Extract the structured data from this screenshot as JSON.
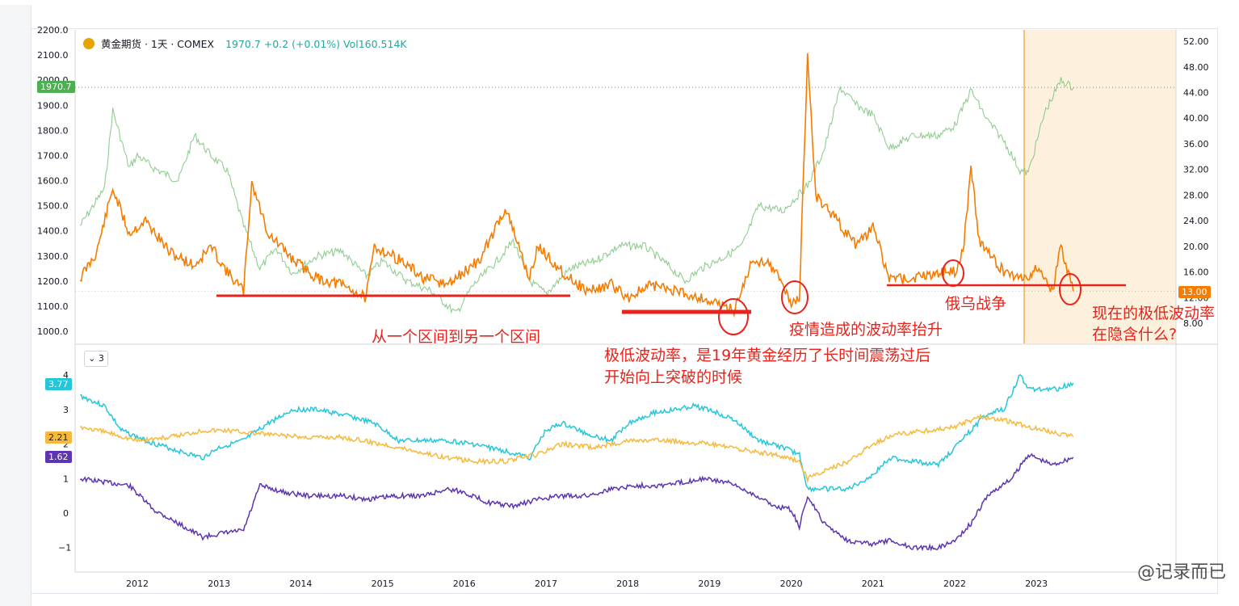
{
  "legend": {
    "symbol": "黄金期货 · 1天 · COMEX",
    "values": "1970.7  +0.2 (+0.01%)  Vol160.514K"
  },
  "badges": {
    "price": "1970.7",
    "vol": "13.00",
    "teal": "3.77",
    "yellow": "2.21",
    "purple": "1.62",
    "pane_btn": "⌄ 3"
  },
  "annotations": {
    "range": "从一个区间到另一个区间",
    "lowvol_line1": "极低波动率，是19年黄金经历了长时间震荡过后",
    "lowvol_line2": "开始向上突破的时候",
    "covid": "疫情造成的波动率抬升",
    "war": "俄乌战争",
    "now_line1": "现在的极低波动率",
    "now_line2": "在隐含什么?"
  },
  "watermark": "@记录而已",
  "colors": {
    "gold_price": "#7ec47e",
    "volatility": "#f57c00",
    "teal": "#26c6da",
    "yellow": "#f6b93b",
    "purple": "#5e35b1",
    "annotation": "#e8231b",
    "highlight": "#fdf0dc"
  },
  "chart_data": [
    {
      "type": "line",
      "title": "黄金期货 · 1天 · COMEX",
      "x_ticks": [
        "2012",
        "2013",
        "2014",
        "2015",
        "2016",
        "2017",
        "2018",
        "2019",
        "2020",
        "2021",
        "2022",
        "2023"
      ],
      "left_axis_ticks": [
        "1000.0",
        "1100.0",
        "1200.0",
        "1300.0",
        "1400.0",
        "1500.0",
        "1600.0",
        "1700.0",
        "1800.0",
        "1900.0",
        "2000.0",
        "2100.0",
        "2200.0"
      ],
      "right_axis_ticks": [
        "8.00",
        "12.00",
        "16.00",
        "20.00",
        "24.00",
        "28.00",
        "32.00",
        "36.00",
        "40.00",
        "44.00",
        "48.00",
        "52.00"
      ],
      "left_ylim": [
        950,
        2200
      ],
      "right_ylim": [
        6,
        53.5
      ],
      "series": [
        {
          "name": "黄金期货",
          "axis": "left",
          "x": [
            2011.3,
            2011.6,
            2011.7,
            2011.9,
            2012.0,
            2012.2,
            2012.5,
            2012.7,
            2012.9,
            2013.1,
            2013.3,
            2013.5,
            2013.7,
            2013.9,
            2014.2,
            2014.5,
            2014.8,
            2015.0,
            2015.3,
            2015.6,
            2015.9,
            2016.1,
            2016.4,
            2016.6,
            2016.8,
            2017.0,
            2017.3,
            2017.6,
            2017.9,
            2018.2,
            2018.5,
            2018.7,
            2018.9,
            2019.2,
            2019.4,
            2019.6,
            2019.9,
            2020.2,
            2020.4,
            2020.6,
            2020.8,
            2021.0,
            2021.2,
            2021.5,
            2021.8,
            2022.0,
            2022.2,
            2022.4,
            2022.6,
            2022.8,
            2022.9,
            2023.1,
            2023.3,
            2023.45
          ],
          "values": [
            1420,
            1570,
            1880,
            1650,
            1700,
            1650,
            1600,
            1780,
            1700,
            1640,
            1420,
            1250,
            1330,
            1230,
            1300,
            1320,
            1220,
            1280,
            1200,
            1160,
            1070,
            1180,
            1280,
            1360,
            1200,
            1150,
            1250,
            1280,
            1340,
            1340,
            1260,
            1200,
            1250,
            1300,
            1340,
            1500,
            1480,
            1580,
            1720,
            1970,
            1900,
            1860,
            1730,
            1780,
            1780,
            1820,
            1960,
            1840,
            1760,
            1640,
            1630,
            1870,
            2000,
            1970
          ]
        },
        {
          "name": "波动率",
          "axis": "right",
          "x": [
            2011.3,
            2011.5,
            2011.7,
            2011.9,
            2012.1,
            2012.4,
            2012.7,
            2012.9,
            2013.1,
            2013.3,
            2013.4,
            2013.6,
            2013.9,
            2014.2,
            2014.5,
            2014.8,
            2014.9,
            2015.2,
            2015.5,
            2015.8,
            2016.0,
            2016.2,
            2016.5,
            2016.8,
            2016.9,
            2017.2,
            2017.5,
            2017.8,
            2018.0,
            2018.3,
            2018.6,
            2018.9,
            2019.1,
            2019.3,
            2019.5,
            2019.7,
            2019.9,
            2020.0,
            2020.1,
            2020.2,
            2020.3,
            2020.5,
            2020.8,
            2021.0,
            2021.2,
            2021.5,
            2021.8,
            2022.0,
            2022.1,
            2022.2,
            2022.3,
            2022.6,
            2022.9,
            2023.0,
            2023.2,
            2023.3,
            2023.45
          ],
          "values": [
            15,
            19,
            29,
            22,
            24,
            19,
            17,
            20,
            16,
            13,
            30,
            22,
            18,
            15,
            14,
            12,
            20,
            18,
            15,
            14,
            16,
            18,
            26,
            15,
            20,
            16,
            13,
            14,
            12,
            14,
            13,
            12,
            11,
            10,
            17,
            18,
            14,
            11,
            12,
            50,
            28,
            25,
            20,
            23,
            15,
            15,
            16,
            16,
            19,
            32,
            21,
            16,
            15,
            17,
            13,
            20,
            13
          ]
        }
      ]
    },
    {
      "type": "line",
      "y_ticks": [
        "-1",
        "0",
        "1",
        "2",
        "3",
        "4"
      ],
      "ylim": [
        -1.6,
        4.6
      ],
      "x_ticks": [
        "2012",
        "2013",
        "2014",
        "2015",
        "2016",
        "2017",
        "2018",
        "2019",
        "2020",
        "2021",
        "2022",
        "2023"
      ],
      "series": [
        {
          "name": "",
          "color_key": "teal",
          "x": [
            2011.3,
            2011.6,
            2011.8,
            2012.1,
            2012.5,
            2012.8,
            2013.0,
            2013.3,
            2013.6,
            2013.9,
            2014.2,
            2014.6,
            2014.9,
            2015.2,
            2015.5,
            2015.8,
            2016.1,
            2016.3,
            2016.5,
            2016.8,
            2017.0,
            2017.2,
            2017.5,
            2017.8,
            2018.0,
            2018.3,
            2018.6,
            2018.8,
            2019.0,
            2019.3,
            2019.6,
            2019.9,
            2020.1,
            2020.2,
            2020.4,
            2020.7,
            2021.0,
            2021.2,
            2021.5,
            2021.8,
            2022.0,
            2022.2,
            2022.4,
            2022.6,
            2022.8,
            2022.9,
            2023.1,
            2023.25,
            2023.45
          ],
          "values": [
            3.4,
            3.1,
            2.4,
            2.1,
            1.8,
            1.6,
            1.9,
            2.1,
            2.6,
            3.0,
            3.0,
            2.8,
            2.6,
            2.1,
            2.1,
            2.1,
            2.0,
            1.9,
            1.8,
            1.6,
            2.4,
            2.6,
            2.3,
            2.1,
            2.6,
            2.9,
            3.0,
            3.1,
            3.0,
            2.7,
            2.1,
            1.9,
            1.7,
            0.7,
            0.7,
            0.7,
            1.1,
            1.6,
            1.5,
            1.4,
            1.9,
            2.4,
            2.9,
            3.0,
            4.0,
            3.6,
            3.6,
            3.6,
            3.77
          ]
        },
        {
          "name": "",
          "color_key": "yellow",
          "x": [
            2011.3,
            2011.7,
            2012.0,
            2012.4,
            2012.8,
            2013.1,
            2013.5,
            2014.0,
            2014.5,
            2015.0,
            2015.4,
            2015.8,
            2016.1,
            2016.5,
            2016.9,
            2017.2,
            2017.6,
            2018.0,
            2018.5,
            2019.0,
            2019.5,
            2019.8,
            2020.1,
            2020.2,
            2020.4,
            2020.7,
            2021.0,
            2021.3,
            2021.7,
            2022.0,
            2022.3,
            2022.6,
            2022.9,
            2023.1,
            2023.45
          ],
          "values": [
            2.5,
            2.3,
            2.1,
            2.2,
            2.4,
            2.4,
            2.3,
            2.2,
            2.2,
            2.0,
            1.8,
            1.6,
            1.5,
            1.5,
            1.7,
            2.0,
            1.9,
            2.1,
            2.1,
            2.0,
            1.8,
            1.7,
            1.5,
            1.0,
            1.2,
            1.5,
            2.0,
            2.3,
            2.4,
            2.5,
            2.8,
            2.7,
            2.5,
            2.4,
            2.21
          ]
        },
        {
          "name": "",
          "color_key": "purple",
          "x": [
            2011.3,
            2011.6,
            2011.9,
            2012.2,
            2012.5,
            2012.8,
            2013.0,
            2013.3,
            2013.5,
            2013.8,
            2014.1,
            2014.5,
            2014.8,
            2015.2,
            2015.5,
            2015.8,
            2016.0,
            2016.3,
            2016.6,
            2016.9,
            2017.2,
            2017.5,
            2017.8,
            2018.1,
            2018.4,
            2018.7,
            2018.9,
            2019.2,
            2019.5,
            2019.8,
            2020.0,
            2020.1,
            2020.2,
            2020.4,
            2020.7,
            2021.0,
            2021.2,
            2021.5,
            2021.8,
            2022.0,
            2022.2,
            2022.4,
            2022.7,
            2022.9,
            2023.0,
            2023.2,
            2023.45
          ],
          "values": [
            1.0,
            0.9,
            0.8,
            0.1,
            -0.3,
            -0.7,
            -0.6,
            -0.5,
            0.8,
            0.6,
            0.5,
            0.5,
            0.4,
            0.5,
            0.5,
            0.7,
            0.6,
            0.3,
            0.2,
            0.4,
            0.5,
            0.5,
            0.7,
            0.8,
            0.8,
            0.9,
            1.0,
            0.9,
            0.6,
            0.2,
            0.1,
            -0.4,
            0.5,
            -0.3,
            -0.8,
            -0.9,
            -0.8,
            -1.0,
            -1.0,
            -0.8,
            -0.3,
            0.5,
            1.0,
            1.7,
            1.6,
            1.4,
            1.62
          ]
        }
      ]
    }
  ]
}
